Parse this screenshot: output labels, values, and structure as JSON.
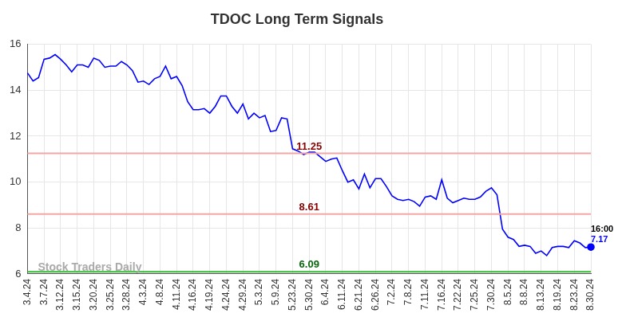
{
  "chart_data": {
    "type": "line",
    "title": "TDOC Long Term Signals",
    "categories": [
      "3.4.24",
      null,
      null,
      "3.7.24",
      null,
      null,
      "3.12.24",
      null,
      null,
      "3.15.24",
      null,
      null,
      "3.20.24",
      null,
      null,
      "3.25.24",
      null,
      null,
      "3.28.24",
      null,
      null,
      "4.3.24",
      null,
      null,
      "4.8.24",
      null,
      null,
      "4.11.24",
      null,
      null,
      "4.16.24",
      null,
      null,
      "4.19.24",
      null,
      null,
      "4.24.24",
      null,
      null,
      "4.29.24",
      null,
      null,
      "5.3.24",
      null,
      null,
      "5.9.24",
      null,
      null,
      "5.23.24",
      null,
      null,
      "5.30.24",
      null,
      null,
      "6.4.24",
      null,
      null,
      "6.11.24",
      null,
      null,
      "6.21.24",
      null,
      null,
      "6.26.24",
      null,
      null,
      "7.2.24",
      null,
      null,
      "7.8.24",
      null,
      null,
      "7.11.24",
      null,
      null,
      "7.16.24",
      null,
      null,
      "7.22.24",
      null,
      null,
      "7.25.24",
      null,
      null,
      "7.30.24",
      null,
      null,
      "8.5.24",
      null,
      null,
      "8.8.24",
      null,
      null,
      "8.13.24",
      null,
      null,
      "8.19.24",
      null,
      null,
      "8.23.24",
      null,
      null,
      "8.30.24"
    ],
    "values": [
      14.75,
      14.4,
      14.55,
      15.35,
      15.4,
      15.55,
      15.35,
      15.1,
      14.8,
      15.1,
      15.1,
      15.0,
      15.4,
      15.3,
      15.0,
      15.05,
      15.05,
      15.25,
      15.1,
      14.85,
      14.35,
      14.4,
      14.25,
      14.5,
      14.6,
      15.05,
      14.5,
      14.6,
      14.2,
      13.5,
      13.15,
      13.15,
      13.2,
      13.0,
      13.3,
      13.75,
      13.75,
      13.3,
      13.0,
      13.4,
      12.75,
      13.0,
      12.8,
      12.9,
      12.2,
      12.25,
      12.8,
      12.75,
      11.45,
      11.35,
      11.2,
      11.3,
      11.3,
      11.1,
      10.9,
      11.0,
      11.05,
      10.5,
      10.0,
      10.1,
      9.7,
      10.35,
      9.75,
      10.15,
      10.15,
      9.8,
      9.4,
      9.25,
      9.2,
      9.25,
      9.15,
      8.95,
      9.35,
      9.4,
      9.25,
      10.1,
      9.3,
      9.1,
      9.2,
      9.3,
      9.25,
      9.25,
      9.35,
      9.6,
      9.75,
      9.45,
      7.95,
      7.6,
      7.5,
      7.2,
      7.25,
      7.2,
      6.9,
      7.0,
      6.8,
      7.15,
      7.2,
      7.2,
      7.15,
      7.45,
      7.35,
      7.15,
      7.17
    ],
    "color": "#0000ff",
    "ylim": [
      6,
      16
    ],
    "yticks": [
      6,
      8,
      10,
      12,
      14,
      16
    ],
    "grid": true,
    "signal_lines": [
      {
        "value": 11.25,
        "color": "#f4a6a6"
      },
      {
        "value": 8.61,
        "color": "#f4a6a6"
      },
      {
        "value": 6.09,
        "color": "#33bb33"
      }
    ],
    "annotations": [
      {
        "text": "Stock Traders Daily"
      },
      {
        "text": "16:00"
      }
    ]
  }
}
